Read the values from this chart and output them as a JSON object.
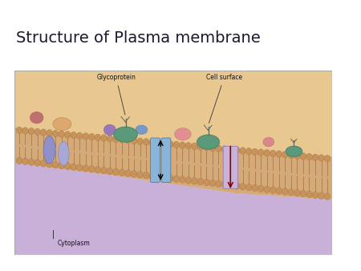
{
  "title": "Structure of Plasma membrane",
  "title_fontsize": 14,
  "title_bg_color": "#dce8f0",
  "bg_color": "#f0f0f0",
  "fig_width": 4.5,
  "fig_height": 3.38,
  "label_glycoprotein": "Glycoprotein",
  "label_cell_surface": "Cell surface",
  "label_cytoplasm": "Cytoplasm",
  "membrane_tan": "#d4a96a",
  "membrane_light": "#e8c898",
  "cytoplasm_color": "#c8b0d8",
  "lipid_head_color": "#c8935a",
  "lipid_edge_color": "#a07040",
  "channel_color": "#8ab4d8",
  "glyco_color": "#5a9a7a",
  "pink_blob": "#d88888",
  "orange_blob": "#dca870",
  "purple_blob": "#9878b8",
  "light_purple_blob": "#c0a8d8",
  "diagram_bg": "#e8d8b8",
  "diagram_border": "#c0b090",
  "white_bg": "#ffffff"
}
